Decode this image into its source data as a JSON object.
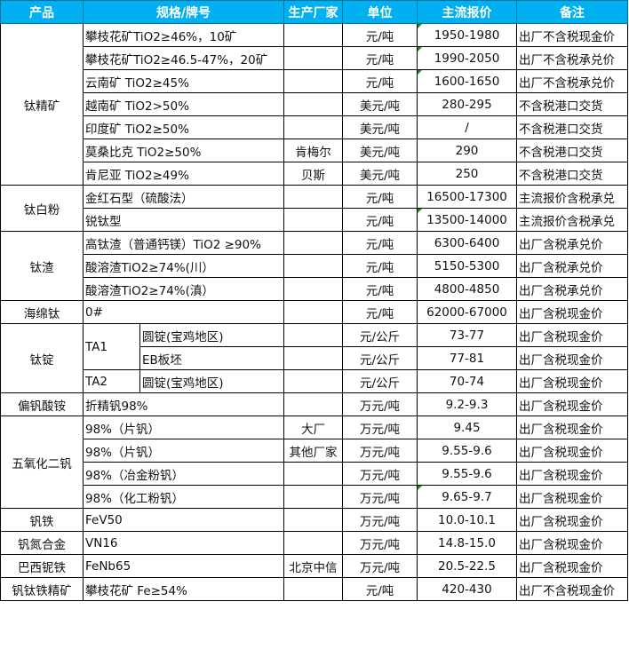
{
  "header": {
    "product": "产品",
    "spec": "规格/牌号",
    "maker": "生产厂家",
    "unit": "单位",
    "price": "主流报价",
    "note": "备注"
  },
  "rows": [
    {
      "product": "钛精矿",
      "span": 7,
      "spec": "攀枝花矿TiO2≥46%，10矿",
      "maker": "",
      "unit": "元/吨",
      "price": "1950-1980",
      "note": "出厂不含税现金价",
      "mark": true
    },
    {
      "spec": "攀枝花矿TiO2≥46.5-47%，20矿",
      "maker": "",
      "unit": "元/吨",
      "price": "1990-2050",
      "note": "出厂不含税承兑价",
      "mark": true
    },
    {
      "spec": "云南矿 TiO2≥45%",
      "maker": "",
      "unit": "元/吨",
      "price": "1600-1650",
      "note": "出厂不含税承兑价",
      "mark": true
    },
    {
      "spec": "越南矿 TiO2>50%",
      "maker": "",
      "unit": "美元/吨",
      "price": "280-295",
      "note": "不含税港口交货"
    },
    {
      "spec": "印度矿 TiO2≥50%",
      "maker": "",
      "unit": "美元/吨",
      "price": "/",
      "note": "不含税港口交货"
    },
    {
      "spec": "莫桑比克 TiO2≥50%",
      "maker": "肯梅尔",
      "unit": "美元/吨",
      "price": "290",
      "note": "不含税港口交货"
    },
    {
      "spec": "肯尼亚 TiO2≥49%",
      "maker": "贝斯",
      "unit": "美元/吨",
      "price": "250",
      "note": "不含税港口交货"
    },
    {
      "product": "钛白粉",
      "span": 2,
      "spec": "金红石型（硫酸法）",
      "maker": "",
      "unit": "元/吨",
      "price": "16500-17300",
      "note": "主流报价含税承兑"
    },
    {
      "spec": "锐钛型",
      "maker": "",
      "unit": "元/吨",
      "price": "13500-14000",
      "note": "主流报价含税承兑",
      "mark": true
    },
    {
      "product": "钛渣",
      "span": 3,
      "spec": "高钛渣（普通钙镁）TiO2 ≥90%",
      "maker": "",
      "unit": "元/吨",
      "price": "6300-6400",
      "note": "出厂含税承兑价"
    },
    {
      "spec": "酸溶渣TiO2≥74%(川）",
      "maker": "",
      "unit": "元/吨",
      "price": "5150-5300",
      "note": "出厂含税承兑价"
    },
    {
      "spec": "酸溶渣TiO2≥74%(滇）",
      "maker": "",
      "unit": "元/吨",
      "price": "4800-4850",
      "note": "出厂含税承兑价"
    },
    {
      "product": "海绵钛",
      "span": 1,
      "spec": "0#",
      "maker": "",
      "unit": "元/吨",
      "price": "62000-67000",
      "note": "出厂含税现金价"
    },
    {
      "product": "钛锭",
      "span": 3,
      "grade": "TA1",
      "gspan": 2,
      "spec": "圆锭(宝鸡地区)",
      "maker": "",
      "unit": "元/公斤",
      "price": "73-77",
      "note": "出厂含税现金价"
    },
    {
      "spec": "EB板坯",
      "maker": "",
      "unit": "元/公斤",
      "price": "77-81",
      "note": "出厂含税现金价"
    },
    {
      "grade": "TA2",
      "gspan": 1,
      "spec": "圆锭(宝鸡地区)",
      "maker": "",
      "unit": "元/公斤",
      "price": "70-74",
      "note": "出厂含税现金价"
    },
    {
      "product": "偏钒酸铵",
      "span": 1,
      "spec": "折精钒98%",
      "maker": "",
      "unit": "万元/吨",
      "price": "9.2-9.3",
      "note": "出厂含税现金价"
    },
    {
      "product": "五氧化二钒",
      "span": 4,
      "spec": "98%（片钒）",
      "maker": "大厂",
      "unit": "万元/吨",
      "price": "9.45",
      "note": "出厂含税现金价"
    },
    {
      "spec": "98%（片钒）",
      "maker": "其他厂家",
      "unit": "万元/吨",
      "price": "9.55-9.6",
      "note": "出厂含税现金价"
    },
    {
      "spec": "98%（冶金粉钒）",
      "maker": "",
      "unit": "万元/吨",
      "price": "9.55-9.6",
      "note": "出厂含税现金价"
    },
    {
      "spec": "98%（化工粉钒）",
      "maker": "",
      "unit": "万元/吨",
      "price": "9.65-9.7",
      "note": "出厂含税现金价",
      "mark": true
    },
    {
      "product": "钒铁",
      "span": 1,
      "spec": "FeV50",
      "maker": "",
      "unit": "万元/吨",
      "price": "10.0-10.1",
      "note": "出厂含税现金价"
    },
    {
      "product": "钒氮合金",
      "span": 1,
      "spec": "VN16",
      "maker": "",
      "unit": "万元/吨",
      "price": "14.8-15.0",
      "note": "出厂含税现金价"
    },
    {
      "product": "巴西铌铁",
      "span": 1,
      "spec": "FeNb65",
      "maker": "北京中信",
      "unit": "万元/吨",
      "price": "20.5-22.5",
      "note": "出厂含税现金价"
    },
    {
      "product": "钒钛铁精矿",
      "span": 1,
      "spec": "攀枝花矿 Fe≥54%",
      "maker": "",
      "unit": "元/吨",
      "price": "420-430",
      "note": "出厂不含税现金价"
    }
  ],
  "colors": {
    "header_bg": "#00b0f0",
    "header_text": "#ffffff",
    "comment_marker": "#1a8a1a"
  }
}
